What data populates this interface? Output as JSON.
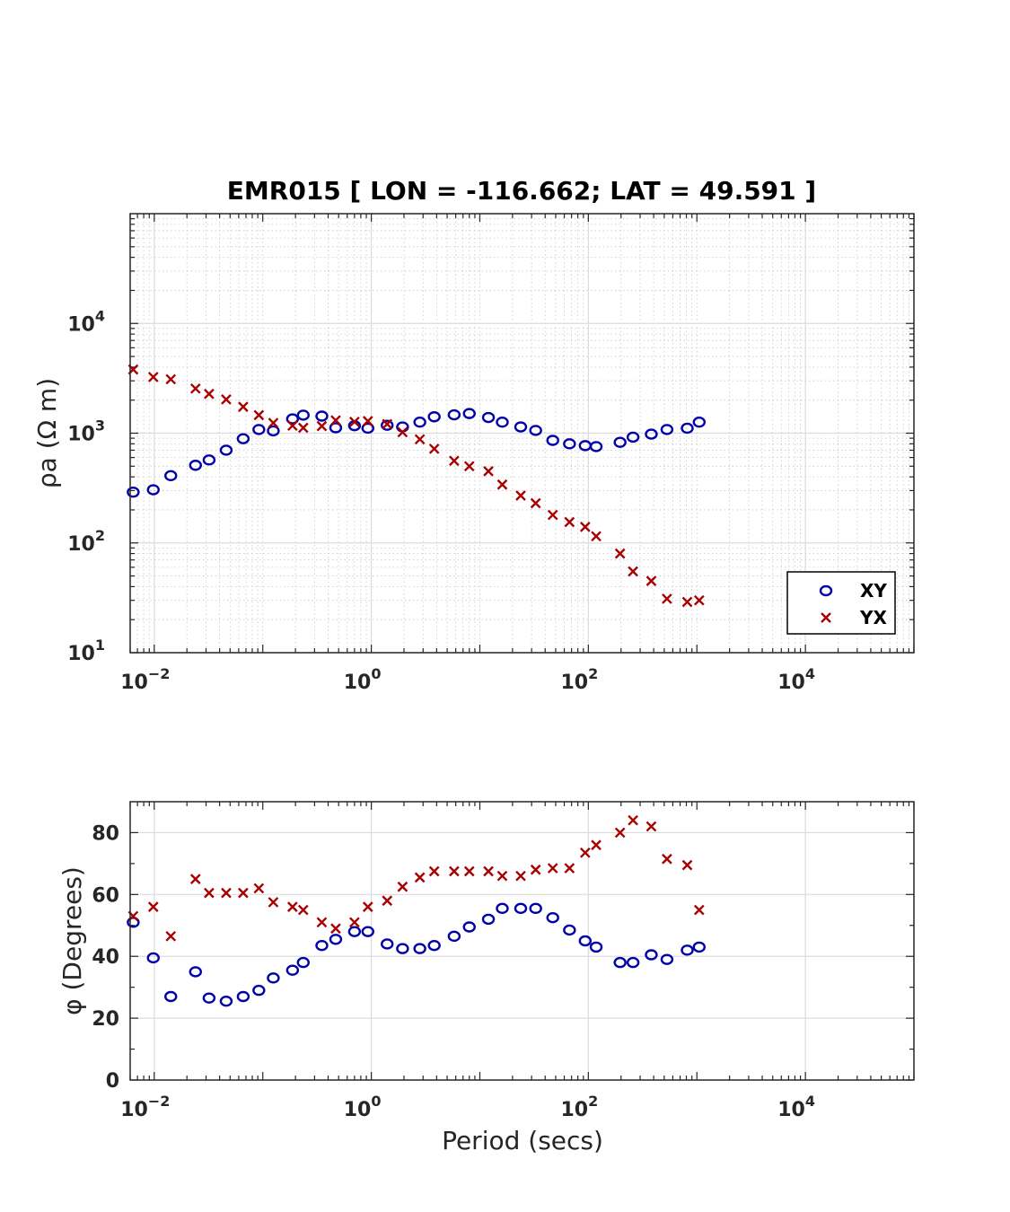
{
  "title": "EMR015 [ LON = -116.662; LAT = 49.591 ]",
  "colors": {
    "xy": "#0000a8",
    "yx": "#a80000",
    "grid": "#d9d9d9",
    "axis": "#262626"
  },
  "chart_data": [
    {
      "type": "scatter",
      "panel": "apparent-resistivity",
      "xlabel": "",
      "ylabel": "ρa (Ω m)",
      "xscale": "log",
      "yscale": "log",
      "xlim": [
        0.006,
        100000
      ],
      "ylim": [
        10,
        100000
      ],
      "xticks": [
        {
          "base": "10",
          "exp": "−2"
        },
        {
          "base": "10",
          "exp": "0"
        },
        {
          "base": "10",
          "exp": "2"
        },
        {
          "base": "10",
          "exp": "4"
        }
      ],
      "yticks": [
        {
          "base": "10",
          "exp": "1"
        },
        {
          "base": "10",
          "exp": "2"
        },
        {
          "base": "10",
          "exp": "3"
        },
        {
          "base": "10",
          "exp": "4"
        }
      ],
      "grid": true,
      "legend": {
        "position": "bottom-right",
        "entries": [
          "XY",
          "YX"
        ]
      },
      "series": [
        {
          "name": "XY",
          "marker": "o",
          "x": [
            0.0064,
            0.0098,
            0.0142,
            0.024,
            0.032,
            0.046,
            0.066,
            0.092,
            0.125,
            0.188,
            0.236,
            0.35,
            0.47,
            0.7,
            0.93,
            1.4,
            1.94,
            2.8,
            3.8,
            5.8,
            8.0,
            12.0,
            16.1,
            23.8,
            32.7,
            47.0,
            67.0,
            93.5,
            118,
            196,
            258,
            380,
            530,
            815,
            1050
          ],
          "y": [
            290,
            305,
            410,
            510,
            570,
            700,
            890,
            1080,
            1050,
            1350,
            1460,
            1430,
            1120,
            1170,
            1110,
            1180,
            1140,
            1260,
            1410,
            1470,
            1510,
            1390,
            1260,
            1140,
            1060,
            860,
            800,
            770,
            755,
            825,
            920,
            980,
            1080,
            1110,
            1260
          ]
        },
        {
          "name": "YX",
          "marker": "x",
          "x": [
            0.0064,
            0.0098,
            0.0142,
            0.024,
            0.032,
            0.046,
            0.066,
            0.092,
            0.125,
            0.188,
            0.236,
            0.35,
            0.47,
            0.7,
            0.93,
            1.4,
            1.94,
            2.8,
            3.8,
            5.8,
            8.0,
            12.0,
            16.1,
            23.8,
            32.7,
            47.0,
            67.0,
            93.5,
            118,
            196,
            258,
            380,
            530,
            815,
            1050
          ],
          "y": [
            3800,
            3250,
            3100,
            2550,
            2280,
            2030,
            1740,
            1460,
            1240,
            1170,
            1120,
            1160,
            1310,
            1270,
            1290,
            1210,
            1020,
            880,
            720,
            560,
            500,
            450,
            340,
            270,
            230,
            180,
            155,
            140,
            115,
            80,
            55,
            45,
            31,
            29,
            30
          ]
        }
      ]
    },
    {
      "type": "scatter",
      "panel": "phase",
      "xlabel": "Period (secs)",
      "ylabel": "φ (Degrees)",
      "xscale": "log",
      "yscale": "linear",
      "xlim": [
        0.006,
        100000
      ],
      "ylim": [
        0,
        90
      ],
      "xticks": [
        {
          "base": "10",
          "exp": "−2"
        },
        {
          "base": "10",
          "exp": "0"
        },
        {
          "base": "10",
          "exp": "2"
        },
        {
          "base": "10",
          "exp": "4"
        }
      ],
      "yticks": [
        "0",
        "20",
        "40",
        "60",
        "80"
      ],
      "grid": true,
      "series": [
        {
          "name": "XY",
          "marker": "o",
          "x": [
            0.0064,
            0.0098,
            0.0142,
            0.024,
            0.032,
            0.046,
            0.066,
            0.092,
            0.125,
            0.188,
            0.236,
            0.35,
            0.47,
            0.7,
            0.93,
            1.4,
            1.94,
            2.8,
            3.8,
            5.8,
            8.0,
            12.0,
            16.1,
            23.8,
            32.7,
            47.0,
            67.0,
            93.5,
            118,
            196,
            258,
            380,
            530,
            815,
            1050
          ],
          "y": [
            51,
            39.5,
            27,
            35,
            26.5,
            25.5,
            27,
            29,
            33,
            35.5,
            38,
            43.5,
            45.5,
            48,
            48,
            44,
            42.5,
            42.5,
            43.5,
            46.5,
            49.5,
            52,
            55.5,
            55.5,
            55.5,
            52.5,
            48.5,
            45,
            43,
            38,
            38,
            40.5,
            39,
            42,
            43
          ]
        },
        {
          "name": "YX",
          "marker": "x",
          "x": [
            0.0064,
            0.0098,
            0.0142,
            0.024,
            0.032,
            0.046,
            0.066,
            0.092,
            0.125,
            0.188,
            0.236,
            0.35,
            0.47,
            0.7,
            0.93,
            1.4,
            1.94,
            2.8,
            3.8,
            5.8,
            8.0,
            12.0,
            16.1,
            23.8,
            32.7,
            47.0,
            67.0,
            93.5,
            118,
            196,
            258,
            380,
            530,
            815,
            1050
          ],
          "y": [
            53,
            56,
            46.5,
            65,
            60.5,
            60.5,
            60.5,
            62,
            57.5,
            56,
            55,
            51,
            49,
            51,
            56,
            58,
            62.5,
            65.5,
            67.5,
            67.5,
            67.5,
            67.5,
            66,
            66,
            68,
            68.5,
            68.5,
            73.5,
            76,
            80,
            84,
            82,
            71.5,
            69.5,
            55
          ]
        }
      ]
    }
  ]
}
